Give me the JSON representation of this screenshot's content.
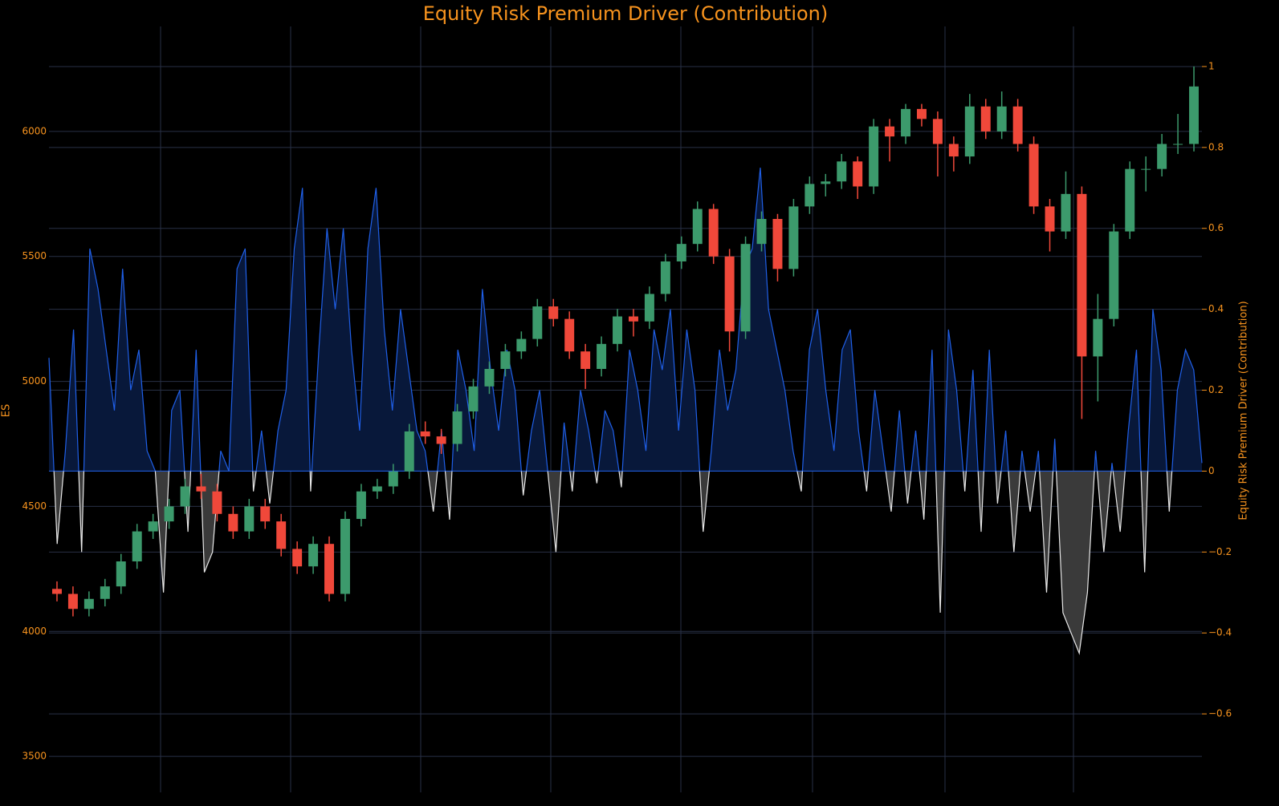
{
  "chart_data": {
    "type": "candlestick",
    "title": "Equity Risk Premium Driver (Contribution)",
    "y_label": "ES",
    "y2_label": "Equity Risk Premium Driver (Contribution)",
    "ylim": [
      3356,
      6420
    ],
    "yticks": [
      3500,
      4000,
      4500,
      5000,
      5500,
      6000
    ],
    "y2lim": [
      -0.794,
      1.099
    ],
    "y2ticks": [
      {
        "value": -0.6,
        "label": "−0.6"
      },
      {
        "value": -0.4,
        "label": "−0.4"
      },
      {
        "value": -0.2,
        "label": "−0.2"
      },
      0,
      0.2,
      0.4,
      0.6,
      0.8,
      1
    ],
    "grid": true,
    "increasing_color": "#3c9a6c",
    "decreasing_color": "#f0483a",
    "candles": [
      [
        4170,
        4200,
        4120,
        4150
      ],
      [
        4150,
        4180,
        4060,
        4090
      ],
      [
        4090,
        4160,
        4060,
        4130
      ],
      [
        4130,
        4210,
        4100,
        4180
      ],
      [
        4180,
        4310,
        4150,
        4280
      ],
      [
        4280,
        4430,
        4250,
        4400
      ],
      [
        4400,
        4470,
        4370,
        4440
      ],
      [
        4440,
        4530,
        4410,
        4500
      ],
      [
        4500,
        4610,
        4470,
        4580
      ],
      [
        4580,
        4630,
        4530,
        4560
      ],
      [
        4560,
        4590,
        4440,
        4470
      ],
      [
        4470,
        4500,
        4370,
        4400
      ],
      [
        4400,
        4530,
        4370,
        4500
      ],
      [
        4500,
        4530,
        4410,
        4440
      ],
      [
        4440,
        4470,
        4300,
        4330
      ],
      [
        4330,
        4360,
        4230,
        4260
      ],
      [
        4260,
        4380,
        4230,
        4350
      ],
      [
        4350,
        4380,
        4120,
        4150
      ],
      [
        4150,
        4480,
        4120,
        4450
      ],
      [
        4450,
        4590,
        4420,
        4560
      ],
      [
        4560,
        4610,
        4530,
        4580
      ],
      [
        4580,
        4670,
        4550,
        4640
      ],
      [
        4640,
        4830,
        4610,
        4800
      ],
      [
        4800,
        4840,
        4750,
        4780
      ],
      [
        4780,
        4810,
        4710,
        4750
      ],
      [
        4750,
        4910,
        4720,
        4880
      ],
      [
        4880,
        5010,
        4850,
        4980
      ],
      [
        4980,
        5080,
        4950,
        5050
      ],
      [
        5050,
        5150,
        5020,
        5120
      ],
      [
        5120,
        5200,
        5090,
        5170
      ],
      [
        5170,
        5330,
        5140,
        5300
      ],
      [
        5300,
        5330,
        5220,
        5250
      ],
      [
        5250,
        5280,
        5090,
        5120
      ],
      [
        5120,
        5150,
        4970,
        5050
      ],
      [
        5050,
        5180,
        5020,
        5150
      ],
      [
        5150,
        5290,
        5120,
        5260
      ],
      [
        5260,
        5290,
        5180,
        5240
      ],
      [
        5240,
        5380,
        5210,
        5350
      ],
      [
        5350,
        5510,
        5320,
        5480
      ],
      [
        5480,
        5580,
        5450,
        5550
      ],
      [
        5550,
        5720,
        5520,
        5690
      ],
      [
        5690,
        5710,
        5470,
        5500
      ],
      [
        5500,
        5530,
        5120,
        5200
      ],
      [
        5200,
        5580,
        5170,
        5550
      ],
      [
        5550,
        5680,
        5520,
        5650
      ],
      [
        5650,
        5670,
        5400,
        5450
      ],
      [
        5450,
        5730,
        5420,
        5700
      ],
      [
        5700,
        5820,
        5670,
        5790
      ],
      [
        5790,
        5830,
        5740,
        5800
      ],
      [
        5800,
        5910,
        5770,
        5880
      ],
      [
        5880,
        5900,
        5730,
        5780
      ],
      [
        5780,
        6050,
        5750,
        6020
      ],
      [
        6020,
        6050,
        5880,
        5980
      ],
      [
        5980,
        6110,
        5950,
        6090
      ],
      [
        6090,
        6110,
        6020,
        6050
      ],
      [
        6050,
        6080,
        5820,
        5950
      ],
      [
        5950,
        5980,
        5840,
        5900
      ],
      [
        5900,
        6150,
        5870,
        6100
      ],
      [
        6100,
        6130,
        5970,
        6000
      ],
      [
        6000,
        6160,
        5970,
        6100
      ],
      [
        6100,
        6130,
        5920,
        5950
      ],
      [
        5950,
        5980,
        5670,
        5700
      ],
      [
        5700,
        5730,
        5520,
        5600
      ],
      [
        5600,
        5840,
        5570,
        5750
      ],
      [
        5750,
        5780,
        4850,
        5100
      ],
      [
        5100,
        5350,
        4920,
        5250
      ],
      [
        5250,
        5630,
        5220,
        5600
      ],
      [
        5600,
        5880,
        5570,
        5850
      ],
      [
        5850,
        5900,
        5760,
        5850
      ],
      [
        5850,
        5990,
        5820,
        5950
      ],
      [
        5950,
        6070,
        5910,
        5950
      ],
      [
        5950,
        6260,
        5920,
        6180
      ]
    ],
    "series": [
      {
        "axis": "y2",
        "color": "#1f5fe8",
        "negative_color": "#e8e8e8",
        "fill": "#08183a",
        "negative_fill": "#3a3a3a",
        "values": [
          0.28,
          -0.18,
          0.05,
          0.35,
          -0.2,
          0.55,
          0.45,
          0.3,
          0.15,
          0.5,
          0.2,
          0.3,
          0.05,
          0,
          -0.3,
          0.15,
          0.2,
          -0.15,
          0.3,
          -0.25,
          -0.2,
          0.05,
          0,
          0.5,
          0.55,
          -0.05,
          0.1,
          -0.08,
          0.1,
          0.2,
          0.55,
          0.7,
          -0.05,
          0.3,
          0.6,
          0.4,
          0.6,
          0.3,
          0.1,
          0.55,
          0.7,
          0.35,
          0.15,
          0.4,
          0.25,
          0.1,
          0.05,
          -0.1,
          0.1,
          -0.12,
          0.3,
          0.2,
          0.05,
          0.45,
          0.25,
          0.1,
          0.3,
          0.2,
          -0.06,
          0.1,
          0.2,
          0,
          -0.2,
          0.12,
          -0.05,
          0.2,
          0.1,
          -0.03,
          0.15,
          0.1,
          -0.04,
          0.3,
          0.2,
          0.05,
          0.35,
          0.25,
          0.4,
          0.1,
          0.35,
          0.2,
          -0.15,
          0.05,
          0.3,
          0.15,
          0.25,
          0.5,
          0.55,
          0.75,
          0.4,
          0.3,
          0.2,
          0.05,
          -0.05,
          0.3,
          0.4,
          0.2,
          0.05,
          0.3,
          0.35,
          0.1,
          -0.05,
          0.2,
          0.05,
          -0.1,
          0.15,
          -0.08,
          0.1,
          -0.12,
          0.3,
          -0.35,
          0.35,
          0.2,
          -0.05,
          0.25,
          -0.15,
          0.3,
          -0.08,
          0.1,
          -0.2,
          0.05,
          -0.1,
          0.05,
          -0.3,
          0.08,
          -0.35,
          -0.4,
          -0.45,
          -0.3,
          0.05,
          -0.2,
          0.02,
          -0.15,
          0.1,
          0.3,
          -0.25,
          0.4,
          0.25,
          -0.1,
          0.2,
          0.3,
          0.25,
          0.02
        ]
      }
    ]
  }
}
